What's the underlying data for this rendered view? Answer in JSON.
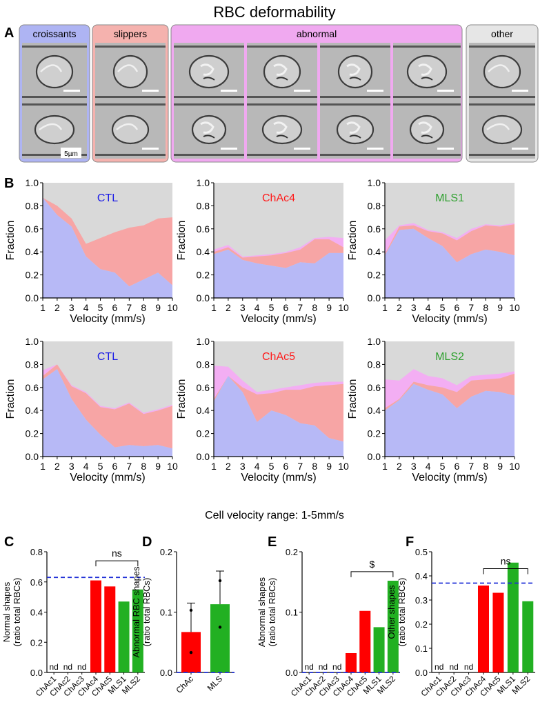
{
  "figure_title": "RBC deformability",
  "subtitle": "Cell velocity range: 1-5mm/s",
  "panel_labels": [
    "A",
    "B",
    "C",
    "D",
    "E",
    "F"
  ],
  "panel_a": {
    "groups": [
      {
        "label": "croissants",
        "color": "#aeb4f3",
        "cells": 2
      },
      {
        "label": "slippers",
        "color": "#f5b2ae",
        "cells": 2
      },
      {
        "label": "abnormal",
        "color": "#f0a9f0",
        "cells": 8
      },
      {
        "label": "other",
        "color": "#e6e6e6",
        "cells": 2
      }
    ],
    "scale_bar_label": "5µm"
  },
  "colors": {
    "normal": "#b7b9f6",
    "slipper": "#f7a5a5",
    "abnormal": "#f3aef3",
    "other": "#d9d9d9",
    "red_bar": "#ff0000",
    "green_bar": "#22b022",
    "ref_line": "#1f2fd6"
  },
  "chart_data": [
    {
      "type": "area",
      "panel": "B",
      "title": "CTL",
      "title_color": "#1a1ae6",
      "xlabel": "Velocity (mm/s)",
      "ylabel": "Fraction",
      "x": [
        1,
        2,
        3,
        4,
        5,
        6,
        7,
        8,
        9,
        10
      ],
      "ylim": [
        0,
        1
      ],
      "yticks": [
        "0.0",
        "0.2",
        "0.4",
        "0.6",
        "0.8",
        "1.0"
      ],
      "series": [
        {
          "name": "croissants",
          "values": [
            0.87,
            0.72,
            0.62,
            0.36,
            0.25,
            0.22,
            0.1,
            0.16,
            0.22,
            0.11
          ]
        },
        {
          "name": "slippers",
          "values": [
            0.87,
            0.8,
            0.69,
            0.47,
            0.52,
            0.57,
            0.61,
            0.63,
            0.69,
            0.7
          ]
        },
        {
          "name": "abnormal",
          "values": [
            0.87,
            0.8,
            0.69,
            0.47,
            0.52,
            0.57,
            0.61,
            0.63,
            0.69,
            0.7
          ]
        }
      ]
    },
    {
      "type": "area",
      "panel": "B",
      "title": "ChAc4",
      "title_color": "#ff1a1a",
      "xlabel": "Velocity (mm/s)",
      "ylabel": "Fraction",
      "x": [
        1,
        2,
        3,
        4,
        5,
        6,
        7,
        8,
        9,
        10
      ],
      "ylim": [
        0,
        1
      ],
      "yticks": [
        "0.0",
        "0.2",
        "0.4",
        "0.6",
        "0.8",
        "1.0"
      ],
      "series": [
        {
          "name": "croissants",
          "values": [
            0.38,
            0.42,
            0.33,
            0.3,
            0.28,
            0.26,
            0.31,
            0.3,
            0.39,
            0.39
          ]
        },
        {
          "name": "slippers",
          "values": [
            0.4,
            0.44,
            0.35,
            0.36,
            0.37,
            0.39,
            0.42,
            0.51,
            0.51,
            0.44
          ]
        },
        {
          "name": "abnormal",
          "values": [
            0.42,
            0.46,
            0.36,
            0.37,
            0.38,
            0.4,
            0.44,
            0.52,
            0.53,
            0.52
          ]
        }
      ]
    },
    {
      "type": "area",
      "panel": "B",
      "title": "MLS1",
      "title_color": "#2ea02e",
      "xlabel": "Velocity (mm/s)",
      "ylabel": "Fraction",
      "x": [
        1,
        2,
        3,
        4,
        5,
        6,
        7,
        8,
        9,
        10
      ],
      "ylim": [
        0,
        1
      ],
      "yticks": [
        "0.0",
        "0.2",
        "0.4",
        "0.6",
        "0.8",
        "1.0"
      ],
      "series": [
        {
          "name": "croissants",
          "values": [
            0.37,
            0.59,
            0.6,
            0.52,
            0.45,
            0.31,
            0.38,
            0.42,
            0.4,
            0.37
          ]
        },
        {
          "name": "slippers",
          "values": [
            0.38,
            0.62,
            0.63,
            0.58,
            0.56,
            0.5,
            0.58,
            0.63,
            0.62,
            0.64
          ]
        },
        {
          "name": "abnormal",
          "values": [
            0.5,
            0.63,
            0.65,
            0.59,
            0.57,
            0.52,
            0.6,
            0.64,
            0.63,
            0.65
          ]
        }
      ]
    },
    {
      "type": "area",
      "panel": "B",
      "title": "CTL",
      "title_color": "#1a1ae6",
      "xlabel": "Velocity (mm/s)",
      "ylabel": "Fraction",
      "x": [
        1,
        2,
        3,
        4,
        5,
        6,
        7,
        8,
        9,
        10
      ],
      "ylim": [
        0,
        1
      ],
      "yticks": [
        "0.0",
        "0.2",
        "0.4",
        "0.6",
        "0.8",
        "1.0"
      ],
      "series": [
        {
          "name": "croissants",
          "values": [
            0.67,
            0.76,
            0.5,
            0.32,
            0.19,
            0.08,
            0.1,
            0.09,
            0.1,
            0.07
          ]
        },
        {
          "name": "slippers",
          "values": [
            0.7,
            0.8,
            0.61,
            0.55,
            0.43,
            0.41,
            0.46,
            0.37,
            0.4,
            0.44
          ]
        },
        {
          "name": "abnormal",
          "values": [
            0.75,
            0.8,
            0.62,
            0.56,
            0.44,
            0.42,
            0.47,
            0.38,
            0.41,
            0.45
          ]
        }
      ]
    },
    {
      "type": "area",
      "panel": "B",
      "title": "ChAc5",
      "title_color": "#ff1a1a",
      "xlabel": "Velocity (mm/s)",
      "ylabel": "Fraction",
      "x": [
        1,
        2,
        3,
        4,
        5,
        6,
        7,
        8,
        9,
        10
      ],
      "ylim": [
        0,
        1
      ],
      "yticks": [
        "0.0",
        "0.2",
        "0.4",
        "0.6",
        "0.8",
        "1.0"
      ],
      "series": [
        {
          "name": "croissants",
          "values": [
            0.48,
            0.7,
            0.56,
            0.3,
            0.4,
            0.36,
            0.29,
            0.27,
            0.16,
            0.13
          ]
        },
        {
          "name": "slippers",
          "values": [
            0.5,
            0.7,
            0.6,
            0.54,
            0.55,
            0.58,
            0.58,
            0.61,
            0.62,
            0.63
          ]
        },
        {
          "name": "abnormal",
          "values": [
            0.79,
            0.78,
            0.66,
            0.56,
            0.58,
            0.6,
            0.62,
            0.64,
            0.65,
            0.65
          ]
        }
      ]
    },
    {
      "type": "area",
      "panel": "B",
      "title": "MLS2",
      "title_color": "#2ea02e",
      "xlabel": "Velocity (mm/s)",
      "ylabel": "Fraction",
      "x": [
        1,
        2,
        3,
        4,
        5,
        6,
        7,
        8,
        9,
        10
      ],
      "ylim": [
        0,
        1
      ],
      "yticks": [
        "0.0",
        "0.2",
        "0.4",
        "0.6",
        "0.8",
        "1.0"
      ],
      "series": [
        {
          "name": "croissants",
          "values": [
            0.4,
            0.49,
            0.63,
            0.58,
            0.54,
            0.42,
            0.52,
            0.57,
            0.56,
            0.53
          ]
        },
        {
          "name": "slippers",
          "values": [
            0.42,
            0.5,
            0.65,
            0.62,
            0.6,
            0.56,
            0.66,
            0.67,
            0.68,
            0.72
          ]
        },
        {
          "name": "abnormal",
          "values": [
            0.67,
            0.66,
            0.76,
            0.7,
            0.68,
            0.62,
            0.7,
            0.71,
            0.72,
            0.74
          ]
        }
      ]
    },
    {
      "type": "bar",
      "panel": "C",
      "ylabel": "Normal shapes\n(ratio total RBCs)",
      "categories": [
        "ChAc1",
        "ChAc2",
        "ChAc3",
        "ChAc4",
        "ChAc5",
        "MLS1",
        "MLS2"
      ],
      "values": [
        null,
        null,
        null,
        0.61,
        0.57,
        0.47,
        0.55
      ],
      "bar_colors": [
        "red",
        "red",
        "red",
        "red",
        "red",
        "green",
        "green"
      ],
      "nd": [
        true,
        true,
        true,
        false,
        false,
        false,
        false
      ],
      "nd_label": "nd",
      "ylim": [
        0,
        0.8
      ],
      "yticks": [
        "0.0",
        "0.2",
        "0.4",
        "0.6",
        "0.8"
      ],
      "ref_line": 0.63,
      "bracket": {
        "from": 3,
        "to": 6,
        "label": "ns",
        "level": 0.74
      }
    },
    {
      "type": "bar",
      "panel": "D",
      "ylabel": "Abnormal RBC shapes\n(ratio total RBCs)",
      "categories": [
        "ChAc",
        "MLS"
      ],
      "values": [
        0.067,
        0.113
      ],
      "errors": [
        0.048,
        0.055
      ],
      "points": [
        [
          0.103,
          0.033
        ],
        [
          0.152,
          0.075
        ]
      ],
      "bar_colors": [
        "red",
        "green"
      ],
      "ylim": [
        0,
        0.2
      ],
      "yticks": [
        "0.0",
        "0.1",
        "0.2"
      ],
      "ref_line": 0.0
    },
    {
      "type": "bar",
      "panel": "E",
      "ylabel": "Abnormal shapes\n(ratio total RBCs)",
      "categories": [
        "ChAc1",
        "ChAc2",
        "ChAc3",
        "ChAc4",
        "ChAc5",
        "MLS1",
        "MLS2"
      ],
      "values": [
        null,
        null,
        null,
        0.032,
        0.102,
        0.075,
        0.152
      ],
      "bar_colors": [
        "red",
        "red",
        "red",
        "red",
        "red",
        "green",
        "green"
      ],
      "nd": [
        true,
        true,
        true,
        false,
        false,
        false,
        false
      ],
      "nd_label": "nd",
      "ylim": [
        0,
        0.2
      ],
      "yticks": [
        "0.0",
        "0.1",
        "0.2"
      ],
      "ref_line": 0.0,
      "bracket": {
        "from": 3,
        "to": 6,
        "label": "$",
        "level": 0.167
      }
    },
    {
      "type": "bar",
      "panel": "F",
      "ylabel": "Other shapes\n(ratio total RBCs)",
      "categories": [
        "ChAc1",
        "ChAc2",
        "ChAc3",
        "ChAc4",
        "ChAc5",
        "MLS1",
        "MLS2"
      ],
      "values": [
        null,
        null,
        null,
        0.36,
        0.33,
        0.455,
        0.295
      ],
      "bar_colors": [
        "red",
        "red",
        "red",
        "red",
        "red",
        "green",
        "green"
      ],
      "nd": [
        true,
        true,
        true,
        false,
        false,
        false,
        false
      ],
      "nd_label": "nd",
      "ylim": [
        0,
        0.5
      ],
      "yticks": [
        "0.0",
        "0.1",
        "0.2",
        "0.3",
        "0.4",
        "0.5"
      ],
      "ref_line": 0.37,
      "bracket": {
        "from": 3,
        "to": 6,
        "label": "ns",
        "level": 0.43
      }
    }
  ]
}
